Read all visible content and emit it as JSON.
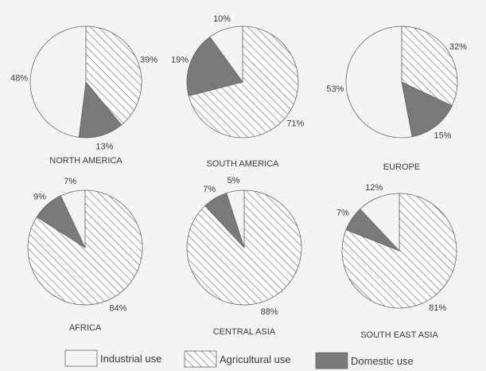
{
  "chart_data": {
    "type": "pie",
    "series_names": [
      "Industrial use",
      "Agricultural use",
      "Domestic use"
    ],
    "colors": {
      "industrial": "#f4f4f4",
      "agricultural": "#ffffff",
      "domestic": "#7a7a7a",
      "hatch": "#555555",
      "outline": "#666666"
    },
    "pies": [
      {
        "region": "NORTH AMERICA",
        "industrial": 48,
        "agricultural": 39,
        "domestic": 13
      },
      {
        "region": "SOUTH AMERICA",
        "industrial": 10,
        "agricultural": 71,
        "domestic": 19
      },
      {
        "region": "EUROPE",
        "industrial": 53,
        "agricultural": 32,
        "domestic": 15
      },
      {
        "region": "AFRICA",
        "industrial": 7,
        "agricultural": 84,
        "domestic": 9
      },
      {
        "region": "CENTRAL ASIA",
        "industrial": 5,
        "agricultural": 88,
        "domestic": 7
      },
      {
        "region": "SOUTH EAST ASIA",
        "industrial": 12,
        "agricultural": 81,
        "domestic": 7
      }
    ],
    "legend": [
      {
        "key": "industrial",
        "label": "Industrial use"
      },
      {
        "key": "agricultural",
        "label": "Agricultural use"
      },
      {
        "key": "domestic",
        "label": "Domestic use"
      }
    ]
  }
}
